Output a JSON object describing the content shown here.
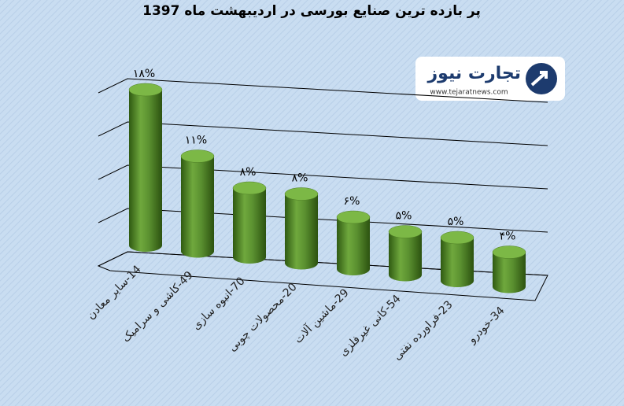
{
  "chart_data": {
    "type": "bar",
    "title": "پر بازده ترین صنایع بورسی در اردیبهشت ماه 1397",
    "categories": [
      "14-سایر معادن",
      "49-کاشی و سرامیک",
      "70-انبوه سازی",
      "20-محصولات چوبی",
      "29-ماشین آلات",
      "54-کانی غیرفلزی",
      "23-فراورده نفتی",
      "34-خودرو"
    ],
    "values": [
      18,
      11,
      8,
      8,
      6,
      5,
      5,
      4
    ],
    "value_labels": [
      "۱۸%",
      "۱۱%",
      "۸%",
      "۸%",
      "۶%",
      "۵%",
      "۵%",
      "۴%"
    ],
    "color": "#5a8f2e",
    "ylim": [
      0,
      20
    ],
    "yticks": [
      0,
      5,
      10,
      15,
      20
    ],
    "grid": true,
    "annotations": [
      "تجارت نیوز",
      "www.tejaratnews.com"
    ]
  }
}
